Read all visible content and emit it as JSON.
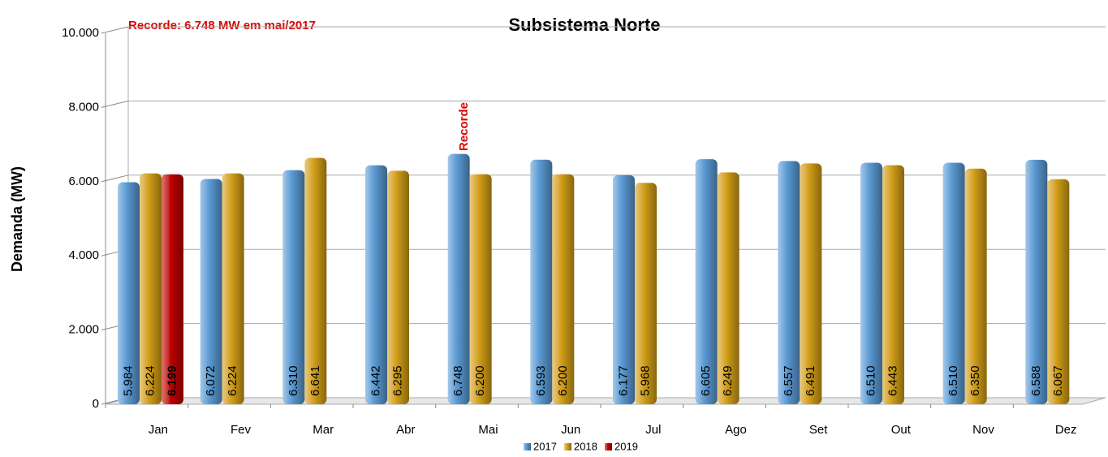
{
  "chart_data": {
    "type": "bar",
    "title": "Subsistema Norte",
    "annotations": [
      "Recorde: 6.748 MW em mai/2017",
      "Recorde"
    ],
    "y_label": "Demanda (MW)",
    "categories": [
      "Jan",
      "Fev",
      "Mar",
      "Abr",
      "Mai",
      "Jun",
      "Jul",
      "Ago",
      "Set",
      "Out",
      "Nov",
      "Dez"
    ],
    "series": [
      {
        "name": "2017",
        "color": "#5b9bd5",
        "values": [
          5984,
          6072,
          6310,
          6442,
          6748,
          6593,
          6177,
          6605,
          6557,
          6510,
          6510,
          6588
        ],
        "value_labels": [
          "5.984",
          "6.072",
          "6.310",
          "6.442",
          "6.748",
          "6.593",
          "6.177",
          "6.605",
          "6.557",
          "6.510",
          "6.510",
          "6.588"
        ]
      },
      {
        "name": "2018",
        "color": "#d4a017",
        "values": [
          6224,
          6224,
          6641,
          6295,
          6200,
          6200,
          5968,
          6249,
          6491,
          6443,
          6350,
          6067
        ],
        "value_labels": [
          "6.224",
          "6.224",
          "6.641",
          "6.295",
          "6.200",
          "6.200",
          "5.968",
          "6.249",
          "6.491",
          "6.443",
          "6.350",
          "6.067"
        ]
      },
      {
        "name": "2019",
        "color": "#c00000",
        "values": [
          6199,
          null,
          null,
          null,
          null,
          null,
          null,
          null,
          null,
          null,
          null,
          null
        ],
        "value_labels": [
          "6.199",
          null,
          null,
          null,
          null,
          null,
          null,
          null,
          null,
          null,
          null,
          null
        ]
      }
    ],
    "ylim": [
      0,
      10000
    ],
    "yticks": [
      0,
      {
        "value": 2000,
        "label": "2.000"
      },
      {
        "value": 4000,
        "label": "4.000"
      },
      {
        "value": 6000,
        "label": "6.000"
      },
      {
        "value": 8000,
        "label": "8.000"
      },
      {
        "value": 10000,
        "label": "10.000"
      }
    ],
    "grid": true,
    "legend": "bottom"
  }
}
